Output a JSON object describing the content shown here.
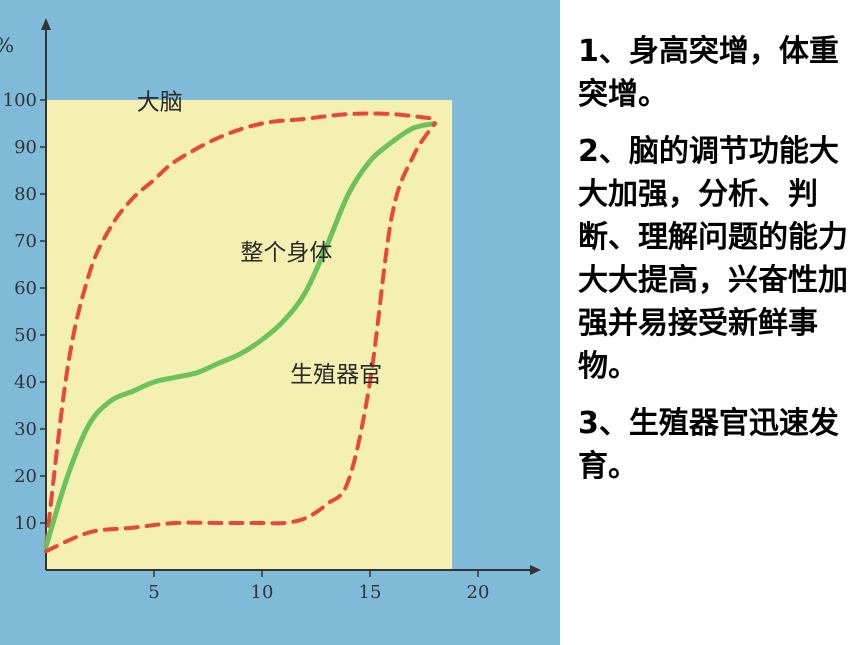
{
  "notes": [
    "1、身高突增，体重突增。",
    "2、脑的调节功能大大加强，分析、判断、理解问题的能力大大提高，兴奋性加强并易接受新鲜事物。",
    "3、生殖器官迅速发育。"
  ],
  "chart_data": {
    "type": "line",
    "title": "",
    "xlabel": "",
    "ylabel": "%",
    "xlim": [
      0,
      20
    ],
    "ylim": [
      0,
      100
    ],
    "xticks": [
      5,
      10,
      15,
      20
    ],
    "yticks": [
      10,
      20,
      30,
      40,
      50,
      60,
      70,
      80,
      90,
      100
    ],
    "grid": false,
    "legend": "none",
    "series": [
      {
        "name": "大脑",
        "style": "dashed",
        "color": "#e8483a",
        "x": [
          0,
          1,
          2,
          3,
          4,
          5,
          6,
          8,
          10,
          12,
          14,
          16,
          18
        ],
        "y": [
          5,
          43,
          63,
          73,
          79,
          83,
          87,
          92,
          95,
          96,
          97,
          97,
          96
        ]
      },
      {
        "name": "整个身体",
        "style": "solid",
        "color": "#6ec25c",
        "x": [
          0,
          1,
          2,
          3,
          4,
          5,
          6,
          7,
          8,
          9,
          10,
          11,
          12,
          13,
          14,
          15,
          16,
          17,
          18
        ],
        "y": [
          5,
          20,
          31,
          36,
          38,
          40,
          41,
          42,
          44,
          46,
          49,
          53,
          59,
          69,
          80,
          87,
          91,
          94,
          95
        ]
      },
      {
        "name": "生殖器官",
        "style": "dashed",
        "color": "#e8483a",
        "x": [
          0,
          2,
          4,
          6,
          8,
          10,
          11,
          12,
          13,
          14,
          15,
          16,
          17,
          18
        ],
        "y": [
          4,
          8,
          9,
          10,
          10,
          10,
          10,
          11,
          14,
          19,
          40,
          75,
          88,
          95
        ]
      }
    ],
    "annotations": [
      {
        "text": "大脑",
        "x": 4.2,
        "y": 98
      },
      {
        "text": "整个身体",
        "x": 9.0,
        "y": 66
      },
      {
        "text": "生殖器官",
        "x": 11.3,
        "y": 40
      }
    ]
  }
}
